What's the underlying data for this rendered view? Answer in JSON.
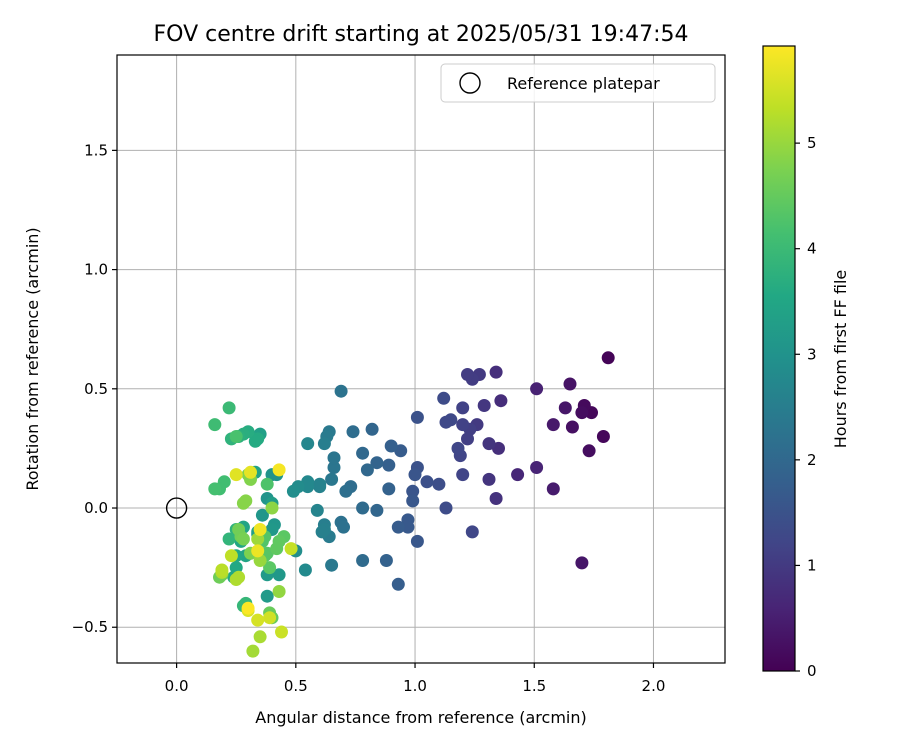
{
  "chart_data": {
    "type": "scatter",
    "title": "FOV centre drift starting at 2025/05/31 19:47:54",
    "xlabel": "Angular distance from reference (arcmin)",
    "ylabel": "Rotation from reference (arcmin)",
    "xlim": [
      -0.25,
      2.3
    ],
    "ylim": [
      -0.65,
      1.9
    ],
    "xticks": [
      0.0,
      0.5,
      1.0,
      1.5,
      2.0
    ],
    "xtick_labels": [
      "0.0",
      "0.5",
      "1.0",
      "1.5",
      "2.0"
    ],
    "yticks": [
      -0.5,
      0.0,
      0.5,
      1.0,
      1.5
    ],
    "ytick_labels": [
      "−0.5",
      "0.0",
      "0.5",
      "1.0",
      "1.5"
    ],
    "grid": true,
    "legend": {
      "position": "top-right",
      "entries": [
        "Reference platepar"
      ]
    },
    "reference_point": {
      "x": 0.0,
      "y": 0.0,
      "label": "Reference platepar"
    },
    "colorbar": {
      "label": "Hours from first FF file",
      "colormap": "viridis",
      "range": [
        0,
        5.92
      ],
      "ticks": [
        0,
        1,
        2,
        3,
        4,
        5
      ],
      "tick_labels": [
        "0",
        "1",
        "2",
        "3",
        "4",
        "5"
      ]
    },
    "points": [
      [
        1.81,
        0.63,
        0.05
      ],
      [
        1.79,
        0.3,
        0.1
      ],
      [
        1.74,
        0.4,
        0.1
      ],
      [
        1.71,
        0.43,
        0.15
      ],
      [
        1.7,
        0.4,
        0.2
      ],
      [
        1.73,
        0.24,
        0.2
      ],
      [
        1.66,
        0.34,
        0.25
      ],
      [
        1.65,
        0.52,
        0.3
      ],
      [
        1.63,
        0.42,
        0.35
      ],
      [
        1.7,
        -0.23,
        0.35
      ],
      [
        1.58,
        0.35,
        0.4
      ],
      [
        1.58,
        0.08,
        0.45
      ],
      [
        1.51,
        0.5,
        0.55
      ],
      [
        1.51,
        0.17,
        0.6
      ],
      [
        1.43,
        0.14,
        0.65
      ],
      [
        1.36,
        0.45,
        0.75
      ],
      [
        1.35,
        0.25,
        0.8
      ],
      [
        1.34,
        0.57,
        0.8
      ],
      [
        1.34,
        0.04,
        0.85
      ],
      [
        1.31,
        0.27,
        0.9
      ],
      [
        1.31,
        0.12,
        0.9
      ],
      [
        1.29,
        0.43,
        0.95
      ],
      [
        1.27,
        0.56,
        1.0
      ],
      [
        1.26,
        0.35,
        1.0
      ],
      [
        1.24,
        0.54,
        1.05
      ],
      [
        1.22,
        0.56,
        1.05
      ],
      [
        1.23,
        0.33,
        1.1
      ],
      [
        1.22,
        0.29,
        1.1
      ],
      [
        1.2,
        0.42,
        1.15
      ],
      [
        1.2,
        0.35,
        1.15
      ],
      [
        1.2,
        0.14,
        1.2
      ],
      [
        1.19,
        0.22,
        1.2
      ],
      [
        1.18,
        0.25,
        1.25
      ],
      [
        1.24,
        -0.1,
        1.25
      ],
      [
        1.15,
        0.37,
        1.3
      ],
      [
        1.13,
        0.36,
        1.3
      ],
      [
        1.12,
        0.46,
        1.35
      ],
      [
        1.13,
        0.0,
        1.35
      ],
      [
        1.1,
        0.1,
        1.4
      ],
      [
        1.05,
        0.11,
        1.45
      ],
      [
        1.01,
        0.38,
        1.5
      ],
      [
        1.01,
        0.17,
        1.5
      ],
      [
        1.0,
        0.14,
        1.55
      ],
      [
        0.99,
        0.07,
        1.55
      ],
      [
        0.99,
        0.03,
        1.6
      ],
      [
        1.01,
        -0.14,
        1.6
      ],
      [
        0.97,
        -0.05,
        1.65
      ],
      [
        0.97,
        -0.08,
        1.65
      ],
      [
        0.94,
        0.24,
        1.7
      ],
      [
        0.93,
        -0.08,
        1.7
      ],
      [
        0.93,
        -0.32,
        1.75
      ],
      [
        0.9,
        0.26,
        1.8
      ],
      [
        0.89,
        0.18,
        1.8
      ],
      [
        0.89,
        0.08,
        1.85
      ],
      [
        0.88,
        -0.22,
        1.85
      ],
      [
        0.84,
        0.19,
        1.9
      ],
      [
        0.82,
        0.33,
        1.95
      ],
      [
        0.84,
        -0.01,
        1.95
      ],
      [
        0.8,
        0.16,
        2.0
      ],
      [
        0.78,
        0.23,
        2.0
      ],
      [
        0.78,
        0.0,
        2.05
      ],
      [
        0.78,
        -0.22,
        2.05
      ],
      [
        0.74,
        0.32,
        2.1
      ],
      [
        0.73,
        0.09,
        2.1
      ],
      [
        0.71,
        0.07,
        2.15
      ],
      [
        0.69,
        -0.06,
        2.2
      ],
      [
        0.7,
        -0.08,
        2.2
      ],
      [
        0.69,
        0.49,
        2.25
      ],
      [
        0.66,
        0.17,
        2.3
      ],
      [
        0.66,
        0.21,
        2.3
      ],
      [
        0.65,
        0.12,
        2.35
      ],
      [
        0.64,
        0.32,
        2.4
      ],
      [
        0.65,
        -0.24,
        2.4
      ],
      [
        0.64,
        -0.12,
        2.45
      ],
      [
        0.63,
        0.3,
        2.45
      ],
      [
        0.62,
        0.27,
        2.5
      ],
      [
        0.62,
        -0.07,
        2.5
      ],
      [
        0.62,
        -0.09,
        2.55
      ],
      [
        0.61,
        -0.1,
        2.55
      ],
      [
        0.6,
        0.09,
        2.6
      ],
      [
        0.6,
        0.1,
        2.6
      ],
      [
        0.59,
        -0.01,
        2.65
      ],
      [
        0.55,
        0.27,
        2.7
      ],
      [
        0.55,
        0.09,
        2.75
      ],
      [
        0.55,
        0.11,
        2.75
      ],
      [
        0.54,
        -0.26,
        2.8
      ],
      [
        0.51,
        0.09,
        2.85
      ],
      [
        0.5,
        -0.18,
        2.9
      ],
      [
        0.49,
        0.07,
        2.9
      ],
      [
        0.42,
        0.14,
        3.0
      ],
      [
        0.4,
        0.14,
        3.0
      ],
      [
        0.38,
        0.04,
        3.05
      ],
      [
        0.36,
        -0.03,
        3.1
      ],
      [
        0.41,
        -0.07,
        3.1
      ],
      [
        0.4,
        -0.09,
        3.15
      ],
      [
        0.43,
        -0.28,
        3.15
      ],
      [
        0.38,
        -0.28,
        3.2
      ],
      [
        0.38,
        -0.37,
        3.2
      ],
      [
        0.4,
        0.02,
        3.25
      ],
      [
        0.34,
        -0.11,
        3.25
      ],
      [
        0.34,
        -0.1,
        3.3
      ],
      [
        0.35,
        0.31,
        3.35
      ],
      [
        0.33,
        0.15,
        3.4
      ],
      [
        0.28,
        -0.08,
        3.45
      ],
      [
        0.29,
        -0.2,
        3.45
      ],
      [
        0.27,
        -0.14,
        3.5
      ],
      [
        0.25,
        -0.2,
        3.5
      ],
      [
        0.25,
        -0.25,
        3.55
      ],
      [
        0.24,
        -0.29,
        3.55
      ],
      [
        0.34,
        0.29,
        3.6
      ],
      [
        0.33,
        0.28,
        3.6
      ],
      [
        0.3,
        0.32,
        3.65
      ],
      [
        0.28,
        0.31,
        3.7
      ],
      [
        0.26,
        0.3,
        3.75
      ],
      [
        0.23,
        0.29,
        3.8
      ],
      [
        0.25,
        -0.09,
        3.8
      ],
      [
        0.22,
        -0.13,
        3.85
      ],
      [
        0.29,
        -0.4,
        3.9
      ],
      [
        0.28,
        -0.41,
        3.9
      ],
      [
        0.22,
        0.42,
        4.0
      ],
      [
        0.16,
        0.35,
        4.05
      ],
      [
        0.2,
        0.11,
        4.1
      ],
      [
        0.18,
        0.08,
        4.1
      ],
      [
        0.16,
        0.08,
        4.15
      ],
      [
        0.25,
        0.3,
        4.2
      ],
      [
        0.38,
        0.1,
        4.25
      ],
      [
        0.37,
        -0.12,
        4.3
      ],
      [
        0.36,
        -0.14,
        4.3
      ],
      [
        0.38,
        -0.19,
        4.35
      ],
      [
        0.37,
        -0.2,
        4.35
      ],
      [
        0.39,
        -0.25,
        4.4
      ],
      [
        0.45,
        -0.12,
        4.4
      ],
      [
        0.43,
        -0.14,
        4.45
      ],
      [
        0.42,
        -0.17,
        4.45
      ],
      [
        0.4,
        -0.46,
        4.5
      ],
      [
        0.39,
        -0.44,
        4.55
      ],
      [
        0.19,
        -0.28,
        4.6
      ],
      [
        0.18,
        -0.29,
        4.6
      ],
      [
        0.26,
        -0.09,
        4.65
      ],
      [
        0.27,
        -0.12,
        4.65
      ],
      [
        0.28,
        -0.13,
        4.7
      ],
      [
        0.31,
        -0.19,
        4.75
      ],
      [
        0.3,
        0.14,
        4.8
      ],
      [
        0.31,
        0.12,
        4.8
      ],
      [
        0.28,
        0.02,
        4.85
      ],
      [
        0.29,
        0.03,
        4.85
      ],
      [
        0.4,
        0.0,
        4.9
      ],
      [
        0.43,
        -0.35,
        4.95
      ],
      [
        0.35,
        -0.22,
        5.0
      ],
      [
        0.34,
        -0.13,
        5.05
      ],
      [
        0.32,
        -0.6,
        5.1
      ],
      [
        0.35,
        -0.54,
        5.15
      ],
      [
        0.26,
        -0.29,
        5.2
      ],
      [
        0.25,
        -0.3,
        5.2
      ],
      [
        0.19,
        -0.27,
        5.25
      ],
      [
        0.19,
        -0.26,
        5.3
      ],
      [
        0.23,
        -0.2,
        5.35
      ],
      [
        0.48,
        -0.17,
        5.4
      ],
      [
        0.44,
        -0.52,
        5.45
      ],
      [
        0.39,
        -0.46,
        5.5
      ],
      [
        0.34,
        -0.47,
        5.55
      ],
      [
        0.3,
        -0.43,
        5.6
      ],
      [
        0.25,
        0.14,
        5.65
      ],
      [
        0.31,
        0.15,
        5.7
      ],
      [
        0.34,
        -0.18,
        5.75
      ],
      [
        0.35,
        -0.09,
        5.8
      ],
      [
        0.43,
        0.16,
        5.85
      ],
      [
        0.3,
        -0.42,
        5.9
      ]
    ]
  }
}
